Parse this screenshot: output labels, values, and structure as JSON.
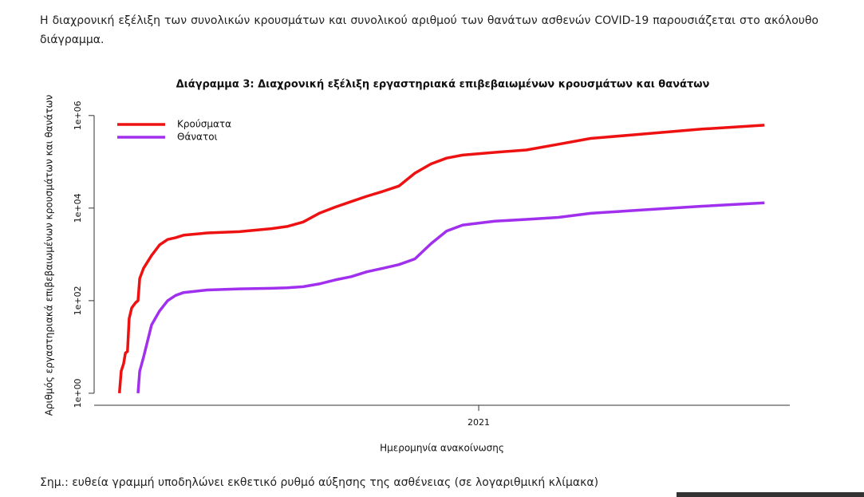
{
  "intro": "Η διαχρονική εξέλιξη των συνολικών κρουσμάτων και συνολικού αριθμού των θανάτων ασθενών COVID-19 παρουσιάζεται στο ακόλουθο διάγραμμα.",
  "chart_data": {
    "type": "line",
    "title": "Διάγραμμα 3: Διαχρονική εξέλιξη εργαστηριακά επιβεβαιωμένων κρουσμάτων και θανάτων",
    "x_label": "Ημερομηνία ανακοίνωσης",
    "y_label": "Αριθμός εργαστηριακά επιβεβαιωμένων κρουσμάτων και θανάτων",
    "log_scale": true,
    "x": [
      2020.149,
      2020.153,
      2020.159,
      2020.163,
      2020.168,
      2020.172,
      2020.178,
      2020.187,
      2020.193,
      2020.197,
      2020.206,
      2020.225,
      2020.244,
      2020.263,
      2020.282,
      2020.301,
      2020.357,
      2020.433,
      2020.509,
      2020.546,
      2020.584,
      2020.622,
      2020.66,
      2020.698,
      2020.735,
      2020.773,
      2020.811,
      2020.849,
      2020.887,
      2020.924,
      2020.962,
      2021.038,
      2021.113,
      2021.189,
      2021.265,
      2021.378,
      2021.529,
      2021.677
    ],
    "series": [
      {
        "name": "Κρούσματα",
        "color": "#ee1111",
        "values": [
          1,
          3,
          4.4,
          7.4,
          8,
          41,
          70,
          90,
          100,
          300,
          500,
          950,
          1600,
          2100,
          2300,
          2600,
          2900,
          3100,
          3600,
          4000,
          5000,
          7700,
          10500,
          13800,
          18000,
          23000,
          30000,
          57000,
          90000,
          120000,
          140000,
          160000,
          180000,
          240000,
          320000,
          390000,
          510000,
          620000
        ]
      },
      {
        "name": "Θάνατοι",
        "color": "#a030ee",
        "values": [
          null,
          null,
          null,
          null,
          null,
          null,
          null,
          null,
          1,
          3,
          6,
          30,
          60,
          100,
          130,
          150,
          170,
          180,
          185,
          190,
          200,
          230,
          280,
          330,
          420,
          500,
          600,
          800,
          1700,
          3200,
          4300,
          5200,
          5700,
          6300,
          7700,
          9000,
          11000,
          13000
        ]
      }
    ],
    "xlim": [
      2020.089,
      2021.737
    ],
    "xticks": [
      2021
    ],
    "ylim": [
      0.55,
      1800000
    ],
    "yticks": [
      {
        "value": 1,
        "label": "1e+00"
      },
      {
        "value": 100,
        "label": "1e+02"
      },
      {
        "value": 10000,
        "label": "1e+04"
      },
      {
        "value": 1000000,
        "label": "1e+06"
      }
    ],
    "legend": "top-left"
  },
  "note": "Σημ.: ευθεία γραμμή υποδηλώνει εκθετικό ρυθμό αύξησης της ασθένειας (σε λογαριθμική κλίμακα)"
}
